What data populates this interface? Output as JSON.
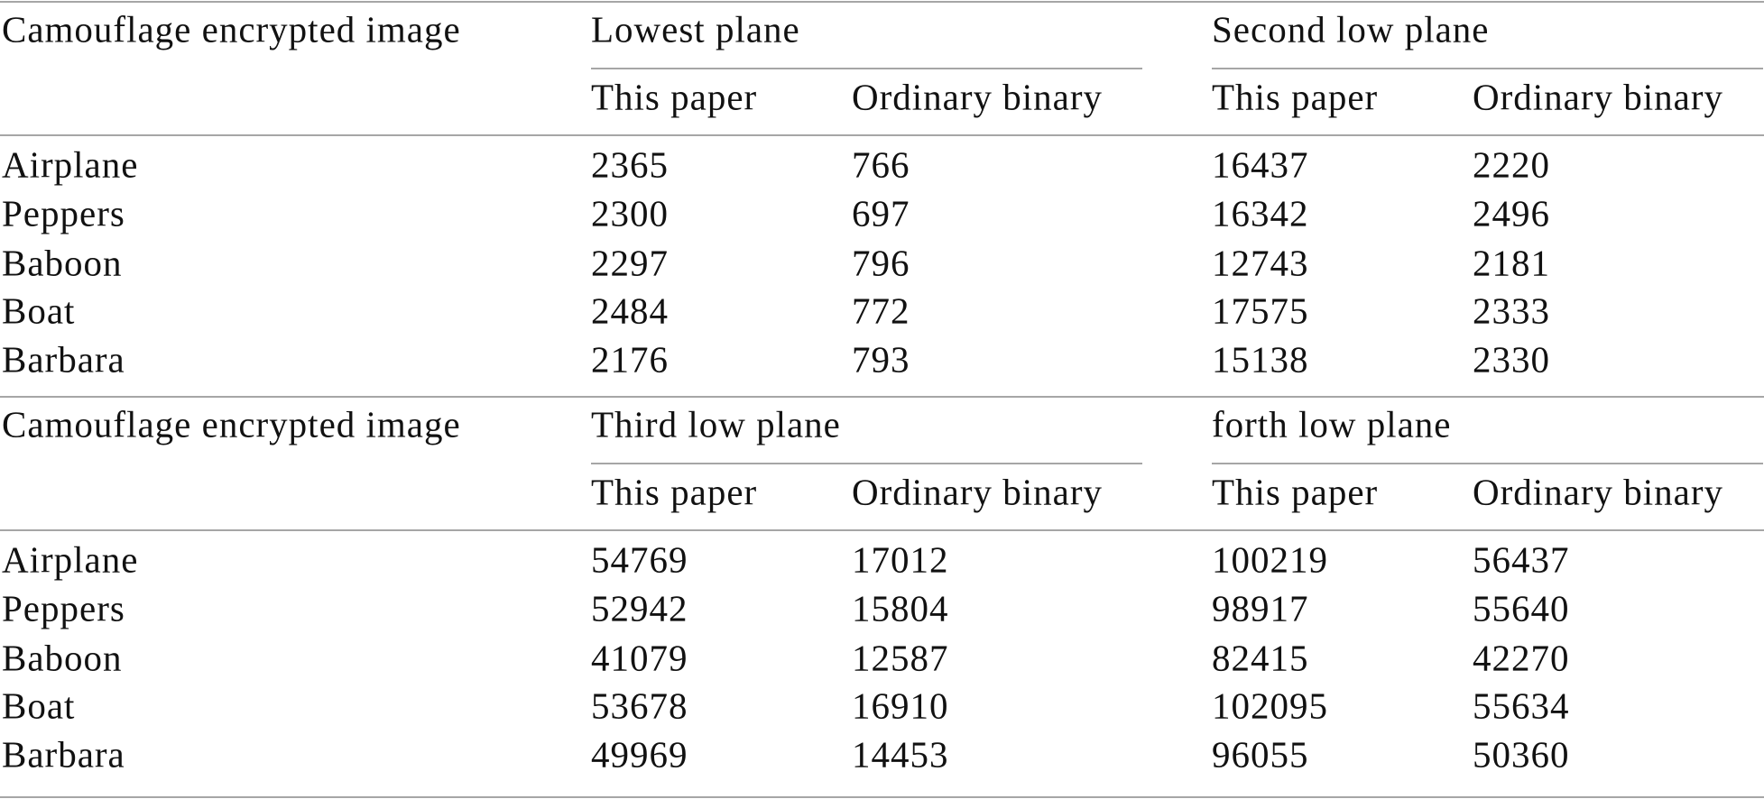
{
  "sections": [
    {
      "row_header": "Camouflage encrypted image",
      "groups": [
        {
          "title": "Lowest plane",
          "columns": [
            "This paper",
            "Ordinary binary"
          ]
        },
        {
          "title": "Second low plane",
          "columns": [
            "This paper",
            "Ordinary binary"
          ]
        }
      ],
      "rows": [
        {
          "label": "Airplane",
          "values": [
            2365,
            766,
            16437,
            2220
          ]
        },
        {
          "label": "Peppers",
          "values": [
            2300,
            697,
            16342,
            2496
          ]
        },
        {
          "label": "Baboon",
          "values": [
            2297,
            796,
            12743,
            2181
          ]
        },
        {
          "label": "Boat",
          "values": [
            2484,
            772,
            17575,
            2333
          ]
        },
        {
          "label": "Barbara",
          "values": [
            2176,
            793,
            15138,
            2330
          ]
        }
      ]
    },
    {
      "row_header": "Camouflage encrypted image",
      "groups": [
        {
          "title": "Third low plane",
          "columns": [
            "This paper",
            "Ordinary binary"
          ]
        },
        {
          "title": "forth low plane",
          "columns": [
            "This paper",
            "Ordinary binary"
          ]
        }
      ],
      "rows": [
        {
          "label": "Airplane",
          "values": [
            54769,
            17012,
            100219,
            56437
          ]
        },
        {
          "label": "Peppers",
          "values": [
            52942,
            15804,
            98917,
            55640
          ]
        },
        {
          "label": "Baboon",
          "values": [
            41079,
            12587,
            82415,
            42270
          ]
        },
        {
          "label": "Boat",
          "values": [
            53678,
            16910,
            102095,
            55634
          ]
        },
        {
          "label": "Barbara",
          "values": [
            49969,
            14453,
            96055,
            50360
          ]
        }
      ]
    }
  ]
}
